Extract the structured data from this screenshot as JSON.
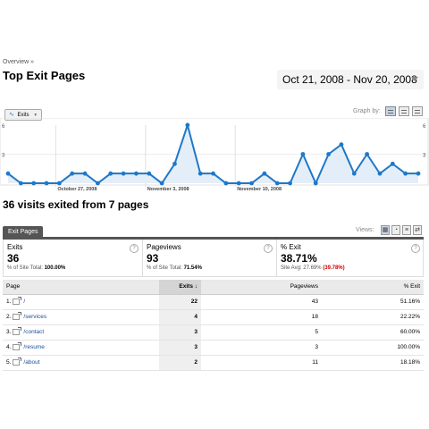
{
  "breadcrumb": "Overview »",
  "page_title": "Top Exit Pages",
  "date_range": "Oct 21, 2008 - Nov 20, 2008",
  "metric_selector": "Exits",
  "graph_by_label": "Graph by:",
  "chart_data": {
    "type": "line",
    "y_ticks_left": [
      "6",
      "3"
    ],
    "y_ticks_right": [
      "6",
      "3"
    ],
    "ylim": [
      0,
      6
    ],
    "x_labels": [
      "October 27, 2008",
      "November 3, 2008",
      "November 10, 2008"
    ],
    "series": [
      {
        "values": [
          1,
          0,
          0,
          0,
          0,
          1,
          1,
          0,
          1,
          1,
          1,
          1,
          0,
          2,
          6,
          1,
          1,
          0,
          0,
          0,
          1,
          0,
          0,
          3,
          0,
          3,
          4,
          1,
          3,
          1,
          2,
          1,
          1
        ]
      }
    ],
    "colors": {
      "line": "#1f78c8",
      "fill": "#e4eef8"
    }
  },
  "subtitle": "36 visits exited from 7 pages",
  "tab_label": "Exit Pages",
  "views_label": "Views:",
  "summary": {
    "exits": {
      "label": "Exits",
      "value": "36",
      "sub_prefix": "% of Site Total: ",
      "sub_value": "100.00%"
    },
    "pageviews": {
      "label": "Pageviews",
      "value": "93",
      "sub_prefix": "% of Site Total: ",
      "sub_value": "71.54%"
    },
    "pct_exit": {
      "label": "% Exit",
      "value": "38.71%",
      "sub_prefix": "Site Avg: 27.69% ",
      "sub_value": "(39.78%)"
    }
  },
  "table": {
    "headers": {
      "page": "Page",
      "exits": "Exits ↓",
      "pageviews": "Pageviews",
      "pct_exit": "% Exit"
    },
    "rows": [
      {
        "index": "1.",
        "page": "/",
        "exits": "22",
        "pageviews": "43",
        "pct_exit": "51.16%"
      },
      {
        "index": "2.",
        "page": "/services",
        "exits": "4",
        "pageviews": "18",
        "pct_exit": "22.22%"
      },
      {
        "index": "3.",
        "page": "/contact",
        "exits": "3",
        "pageviews": "5",
        "pct_exit": "60.00%"
      },
      {
        "index": "4.",
        "page": "/resume",
        "exits": "3",
        "pageviews": "3",
        "pct_exit": "100.00%"
      },
      {
        "index": "5.",
        "page": "/about",
        "exits": "2",
        "pageviews": "11",
        "pct_exit": "18.18%"
      }
    ]
  }
}
